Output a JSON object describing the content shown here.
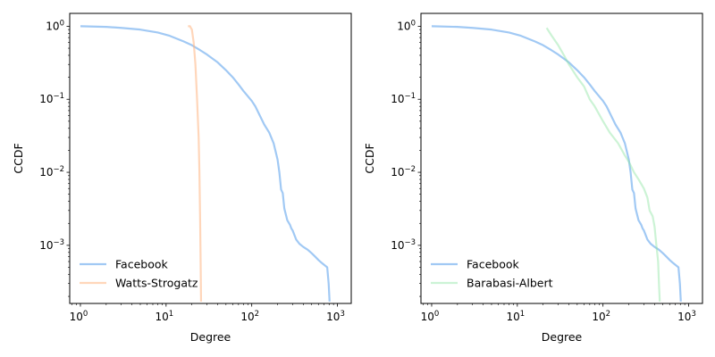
{
  "chart_data": [
    {
      "type": "line",
      "title": "",
      "xlabel": "Degree",
      "ylabel": "CCDF",
      "xscale": "log",
      "yscale": "log",
      "xlim": [
        0.75,
        1450
      ],
      "ylim": [
        0.00016,
        1.5
      ],
      "xticks": [
        {
          "value": 1,
          "base": "10",
          "exp": "0"
        },
        {
          "value": 10,
          "base": "10",
          "exp": "1"
        },
        {
          "value": 100,
          "base": "10",
          "exp": "2"
        },
        {
          "value": 1000,
          "base": "10",
          "exp": "3"
        }
      ],
      "yticks": [
        {
          "value": 1,
          "base": "10",
          "exp": "0"
        },
        {
          "value": 0.1,
          "base": "10",
          "exp": "−1"
        },
        {
          "value": 0.01,
          "base": "10",
          "exp": "−2"
        },
        {
          "value": 0.001,
          "base": "10",
          "exp": "−3"
        }
      ],
      "grid": false,
      "legend": "lower-left",
      "series": [
        {
          "name": "Facebook",
          "color": "#a1c9f4",
          "x": [
            1,
            2,
            3,
            5,
            8,
            11,
            16,
            20,
            25,
            30,
            40,
            50,
            60,
            70,
            80,
            90,
            100,
            110,
            120,
            140,
            160,
            180,
            200,
            210,
            220,
            230,
            240,
            260,
            280,
            290,
            300,
            330,
            360,
            400,
            450,
            500,
            550,
            600,
            650,
            700,
            760,
            790,
            810
          ],
          "y": [
            1.0,
            0.98,
            0.95,
            0.9,
            0.82,
            0.74,
            0.62,
            0.55,
            0.47,
            0.41,
            0.32,
            0.25,
            0.2,
            0.16,
            0.13,
            0.11,
            0.095,
            0.08,
            0.065,
            0.045,
            0.035,
            0.025,
            0.015,
            0.01,
            0.0058,
            0.0052,
            0.0032,
            0.0022,
            0.0019,
            0.0017,
            0.0016,
            0.0012,
            0.00105,
            0.00095,
            0.00087,
            0.00078,
            0.0007,
            0.00063,
            0.00058,
            0.00054,
            0.0005,
            0.0003,
            0.00017
          ]
        },
        {
          "name": "Watts-Strogatz",
          "color": "#ffb482",
          "opacity": 0.55,
          "x": [
            18,
            19,
            20,
            21,
            22,
            23,
            24,
            24.5,
            25,
            25.3,
            25.6
          ],
          "y": [
            1.0,
            1.0,
            0.9,
            0.6,
            0.3,
            0.1,
            0.03,
            0.01,
            0.002,
            0.0006,
            0.00017
          ]
        }
      ]
    },
    {
      "type": "line",
      "title": "",
      "xlabel": "Degree",
      "ylabel": "CCDF",
      "xscale": "log",
      "yscale": "log",
      "xlim": [
        0.75,
        1450
      ],
      "ylim": [
        0.00016,
        1.5
      ],
      "xticks": [
        {
          "value": 1,
          "base": "10",
          "exp": "0"
        },
        {
          "value": 10,
          "base": "10",
          "exp": "1"
        },
        {
          "value": 100,
          "base": "10",
          "exp": "2"
        },
        {
          "value": 1000,
          "base": "10",
          "exp": "3"
        }
      ],
      "yticks": [
        {
          "value": 1,
          "base": "10",
          "exp": "0"
        },
        {
          "value": 0.1,
          "base": "10",
          "exp": "−1"
        },
        {
          "value": 0.01,
          "base": "10",
          "exp": "−2"
        },
        {
          "value": 0.001,
          "base": "10",
          "exp": "−3"
        }
      ],
      "grid": false,
      "legend": "lower-left",
      "series": [
        {
          "name": "Facebook",
          "color": "#a1c9f4",
          "x": [
            1,
            2,
            3,
            5,
            8,
            11,
            16,
            20,
            25,
            30,
            40,
            50,
            60,
            70,
            80,
            90,
            100,
            110,
            120,
            140,
            160,
            180,
            200,
            210,
            220,
            230,
            240,
            260,
            280,
            290,
            300,
            330,
            360,
            400,
            450,
            500,
            550,
            600,
            650,
            700,
            760,
            790,
            810
          ],
          "y": [
            1.0,
            0.98,
            0.95,
            0.9,
            0.82,
            0.74,
            0.62,
            0.55,
            0.47,
            0.41,
            0.32,
            0.25,
            0.2,
            0.16,
            0.13,
            0.11,
            0.095,
            0.08,
            0.065,
            0.045,
            0.035,
            0.025,
            0.015,
            0.01,
            0.0058,
            0.0052,
            0.0032,
            0.0022,
            0.0019,
            0.0017,
            0.0016,
            0.0012,
            0.00105,
            0.00095,
            0.00087,
            0.00078,
            0.0007,
            0.00063,
            0.00058,
            0.00054,
            0.0005,
            0.0003,
            0.00017
          ]
        },
        {
          "name": "Barabasi-Albert",
          "color": "#8de5a1",
          "opacity": 0.45,
          "x": [
            22,
            25,
            30,
            35,
            40,
            50,
            60,
            70,
            80,
            100,
            120,
            150,
            180,
            200,
            230,
            260,
            300,
            330,
            350,
            380,
            400,
            420,
            440,
            450,
            460
          ],
          "y": [
            0.95,
            0.75,
            0.55,
            0.4,
            0.3,
            0.2,
            0.15,
            0.1,
            0.08,
            0.05,
            0.035,
            0.025,
            0.017,
            0.014,
            0.01,
            0.008,
            0.006,
            0.0045,
            0.003,
            0.0025,
            0.0018,
            0.001,
            0.0006,
            0.0003,
            0.00017
          ]
        }
      ]
    }
  ]
}
